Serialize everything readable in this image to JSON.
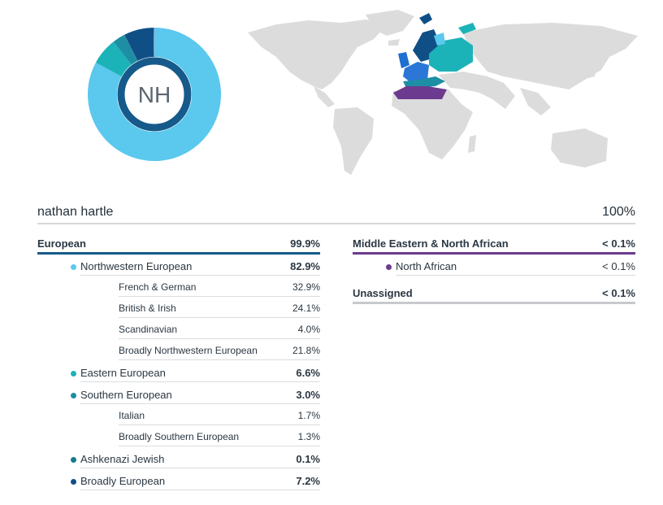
{
  "avatar": {
    "initials": "NH"
  },
  "donut": {
    "segments": [
      {
        "name": "Northwestern European",
        "value": 82.9,
        "color": "#5bc8ee"
      },
      {
        "name": "Eastern European",
        "value": 6.6,
        "color": "#1bb3b8"
      },
      {
        "name": "Southern European",
        "value": 3.0,
        "color": "#1d8ea4"
      },
      {
        "name": "Ashkenazi Jewish",
        "value": 0.1,
        "color": "#167b8d"
      },
      {
        "name": "Broadly European",
        "value": 7.2,
        "color": "#0f4f86"
      },
      {
        "name": "Middle Eastern & North African",
        "value": 0.1,
        "color": "#6c3a8e"
      },
      {
        "name": "Unassigned",
        "value": 0.1,
        "color": "#c7c7c7"
      }
    ],
    "ring_color": "#155a8a"
  },
  "header": {
    "name": "nathan hartle",
    "total": "100%"
  },
  "left": {
    "european": {
      "label": "European",
      "value": "99.9%"
    },
    "nw": {
      "label": "Northwestern European",
      "value": "82.9%",
      "color": "#5bc8ee"
    },
    "french": {
      "label": "French & German",
      "value": "32.9%"
    },
    "british": {
      "label": "British & Irish",
      "value": "24.1%"
    },
    "scand": {
      "label": "Scandinavian",
      "value": "4.0%"
    },
    "bnw": {
      "label": "Broadly Northwestern European",
      "value": "21.8%"
    },
    "eastern": {
      "label": "Eastern European",
      "value": "6.6%",
      "color": "#1bb3b8"
    },
    "southern": {
      "label": "Southern European",
      "value": "3.0%",
      "color": "#1d8ea4"
    },
    "italian": {
      "label": "Italian",
      "value": "1.7%"
    },
    "bsouth": {
      "label": "Broadly Southern European",
      "value": "1.3%"
    },
    "ashk": {
      "label": "Ashkenazi Jewish",
      "value": "0.1%",
      "color": "#167b8d"
    },
    "beuro": {
      "label": "Broadly European",
      "value": "7.2%",
      "color": "#0f4f86"
    }
  },
  "right": {
    "mena": {
      "label": "Middle Eastern & North African",
      "value": "< 0.1%"
    },
    "nafrican": {
      "label": "North African",
      "value": "< 0.1%",
      "color": "#6c3a8e"
    },
    "unassigned": {
      "label": "Unassigned",
      "value": "< 0.1%"
    }
  }
}
